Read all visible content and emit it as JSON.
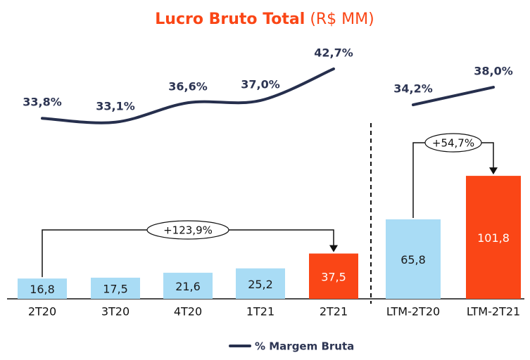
{
  "chart_data": [
    {
      "type": "bar",
      "title": "Lucro Bruto Total",
      "subtitle": "(R$ MM)",
      "categories": [
        "2T20",
        "3T20",
        "4T20",
        "1T21",
        "2T21"
      ],
      "values": [
        16.8,
        17.5,
        21.6,
        25.2,
        37.5
      ],
      "value_labels": [
        "16,8",
        "17,5",
        "21,6",
        "25,2",
        "37,5"
      ],
      "colors": [
        "#a9dcf5",
        "#a9dcf5",
        "#a9dcf5",
        "#a9dcf5",
        "#fa4616"
      ],
      "value_label_colors": [
        "#1a1a1a",
        "#1a1a1a",
        "#1a1a1a",
        "#1a1a1a",
        "#ffffff"
      ],
      "ylim": [
        0,
        110
      ],
      "y2lim": [
        1.3,
        47.5
      ],
      "series": [
        {
          "name": "% Margem Bruta",
          "color": "#262f4d",
          "axis": "y2",
          "values": [
            33.8,
            33.1,
            36.6,
            37.0,
            42.7
          ],
          "value_labels": [
            "33,8%",
            "33,1%",
            "36,6%",
            "37,0%",
            "42,7%"
          ]
        }
      ],
      "annotation": "+123,9%"
    },
    {
      "type": "bar",
      "categories": [
        "LTM-2T20",
        "LTM-2T21"
      ],
      "values": [
        65.8,
        101.8
      ],
      "value_labels": [
        "65,8",
        "101,8"
      ],
      "colors": [
        "#a9dcf5",
        "#fa4616"
      ],
      "value_label_colors": [
        "#1a1a1a",
        "#ffffff"
      ],
      "ylim": [
        0,
        110
      ],
      "y2lim": [
        -7.6,
        47.7
      ],
      "series": [
        {
          "color": "#262f4d",
          "axis": "y2",
          "values": [
            34.2,
            38.0
          ],
          "value_labels": [
            "34,2%",
            "38,0%"
          ]
        }
      ],
      "annotation": "+54,7%"
    }
  ]
}
